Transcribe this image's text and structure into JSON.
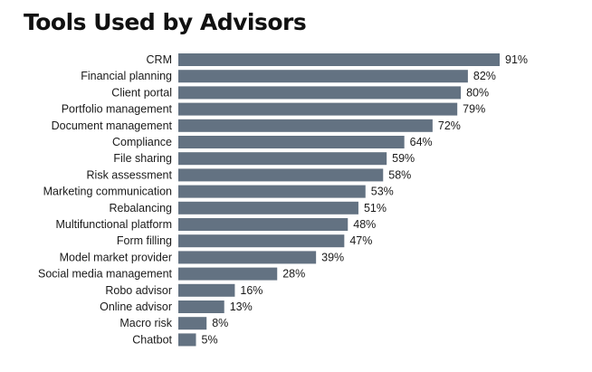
{
  "chart_data": {
    "type": "bar",
    "orientation": "horizontal",
    "title": "Tools Used by Advisors",
    "categories": [
      "CRM",
      "Financial planning",
      "Client portal",
      "Portfolio management",
      "Document management",
      "Compliance",
      "File sharing",
      "Risk assessment",
      "Marketing communication",
      "Rebalancing",
      "Multifunctional platform",
      "Form filling",
      "Model market provider",
      "Social media management",
      "Robo advisor",
      "Online advisor",
      "Macro risk",
      "Chatbot"
    ],
    "values": [
      91,
      82,
      80,
      79,
      72,
      64,
      59,
      58,
      53,
      51,
      48,
      47,
      39,
      28,
      16,
      13,
      8,
      5
    ],
    "value_labels": [
      "91%",
      "82%",
      "80%",
      "79%",
      "72%",
      "64%",
      "59%",
      "58%",
      "53%",
      "51%",
      "48%",
      "47%",
      "39%",
      "28%",
      "16%",
      "13%",
      "8%",
      "5%"
    ],
    "unit": "%",
    "xlim": [
      0,
      91
    ],
    "grid": false,
    "legend": "none",
    "bar_color": "#637282",
    "text_color": "#1a1a1a"
  }
}
